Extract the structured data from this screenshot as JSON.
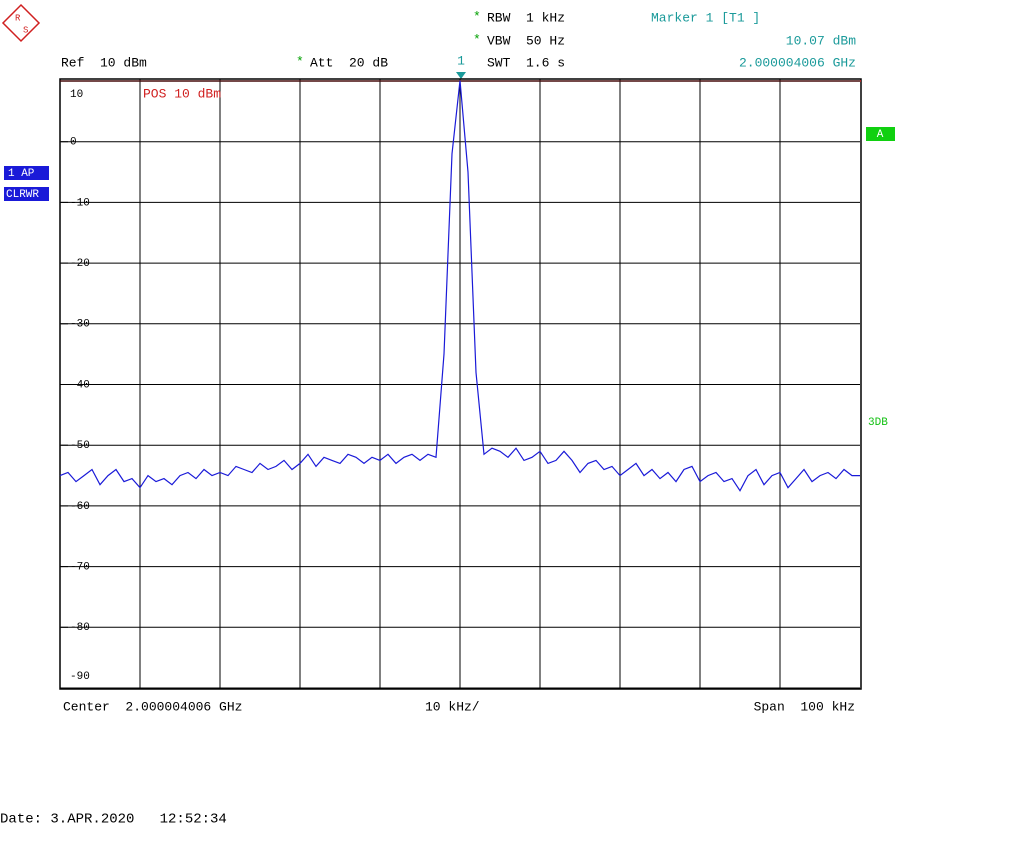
{
  "chart_data": {
    "type": "line",
    "values": [
      -55,
      -54.5,
      -56,
      -55,
      -54,
      -56.5,
      -55,
      -54,
      -56,
      -55.5,
      -57,
      -55,
      -56,
      -55.5,
      -56.5,
      -55,
      -54.5,
      -55.5,
      -54,
      -55,
      -54.5,
      -55,
      -53.5,
      -54,
      -54.5,
      -53,
      -54,
      -53.5,
      -52.5,
      -54,
      -53,
      -51.5,
      -53.5,
      -52,
      -52.5,
      -53,
      -51.5,
      -52,
      -53,
      -52,
      -52.5,
      -51.5,
      -53,
      -52,
      -51.5,
      -52.5,
      -51.5,
      -52,
      -35,
      -2,
      10.07,
      -5,
      -38,
      -51.5,
      -50.5,
      -51,
      -52,
      -50.5,
      -52.5,
      -52,
      -51,
      -53,
      -52.5,
      -51,
      -52.5,
      -54.5,
      -53,
      -52.5,
      -54,
      -53.5,
      -55,
      -54,
      -53,
      -55,
      -54,
      -55.5,
      -54.5,
      -56,
      -54,
      -53.5,
      -56,
      -55,
      -54.5,
      -56,
      -55.5,
      -57.5,
      -55,
      -54,
      -56.5,
      -55,
      -54.5,
      -57,
      -55.5,
      -54,
      -56,
      -55,
      -54.5,
      -55.5,
      -54,
      -55,
      -55
    ],
    "color": "#1a1ad8",
    "ylim": [
      -90,
      10
    ],
    "yticks": [
      10,
      0,
      -10,
      -20,
      -30,
      -40,
      -50,
      -60,
      -70,
      -80,
      -90
    ],
    "grid": true,
    "annotations": {
      "ref": "Ref  10 dBm",
      "att_star": "*",
      "att": "Att  20 dB",
      "rbw_star": "*",
      "rbw": "RBW  1 kHz",
      "vbw_star": "*",
      "vbw": "VBW  50 Hz",
      "swt": "SWT  1.6 s",
      "marker_title": "Marker 1 [T1 ]",
      "marker_level": "10.07 dBm",
      "marker_freq": "2.000004006 GHz",
      "marker_id": "1",
      "pos": "POS 10 dBm",
      "trace_tag": "1 AP",
      "trace_mode": "CLRWR",
      "side_a": "A",
      "side_3db": "3DB",
      "center": "Center  2.000004006 GHz",
      "div": "10 kHz/",
      "span": "Span  100 kHz",
      "date": "Date: 3.APR.2020   12:52:34",
      "logo_r": "R",
      "logo_s": "S"
    }
  }
}
